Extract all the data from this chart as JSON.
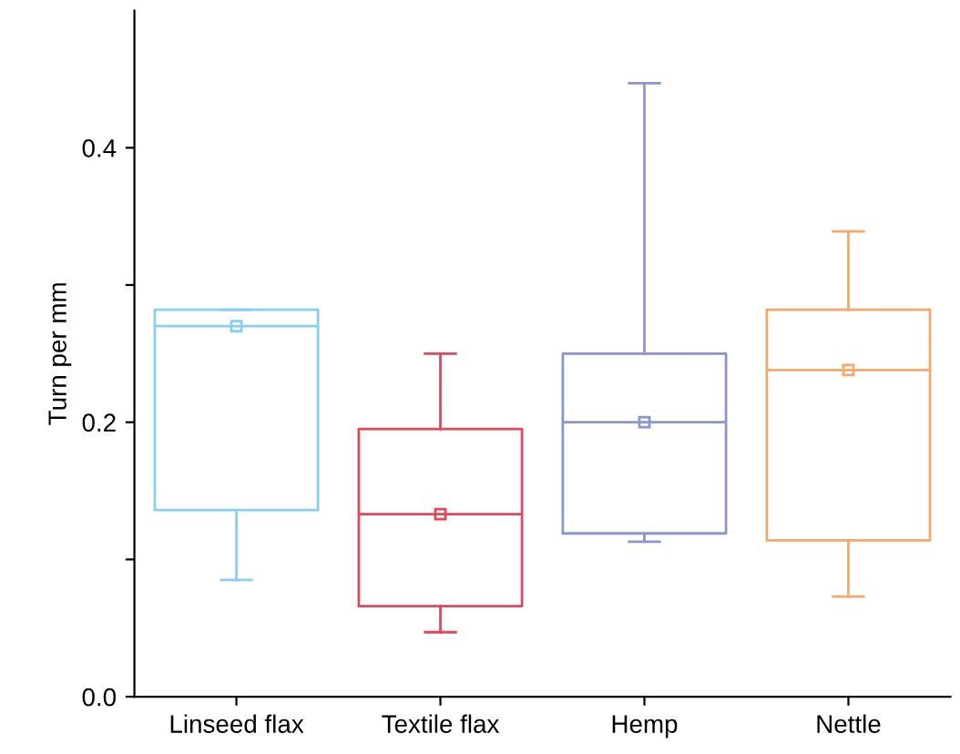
{
  "chart_data": {
    "type": "box",
    "ylabel": "Turn per mm",
    "categories": [
      "Linseed flax",
      "Textile flax",
      "Hemp",
      "Nettle"
    ],
    "colors": [
      "#87cfef",
      "#e0475a",
      "#8c96cc",
      "#f5a86a"
    ],
    "boxes": [
      {
        "low": 0.085,
        "q1": 0.136,
        "median": 0.27,
        "q3": 0.282,
        "high": 0.282,
        "mean": 0.27
      },
      {
        "low": 0.047,
        "q1": 0.066,
        "median": 0.133,
        "q3": 0.195,
        "high": 0.25,
        "mean": 0.133
      },
      {
        "low": 0.113,
        "q1": 0.119,
        "median": 0.2,
        "q3": 0.25,
        "high": 0.447,
        "mean": 0.2
      },
      {
        "low": 0.073,
        "q1": 0.114,
        "median": 0.238,
        "q3": 0.282,
        "high": 0.339,
        "mean": 0.238
      }
    ],
    "ylim": [
      0,
      0.5
    ],
    "yticks": [
      {
        "value": 0,
        "label": "0.0"
      },
      {
        "value": 0.1,
        "label": null
      },
      {
        "value": 0.2,
        "label": "0.2"
      },
      {
        "value": 0.3,
        "label": null
      },
      {
        "value": 0.4,
        "label": "0.4"
      }
    ],
    "grid": false
  }
}
